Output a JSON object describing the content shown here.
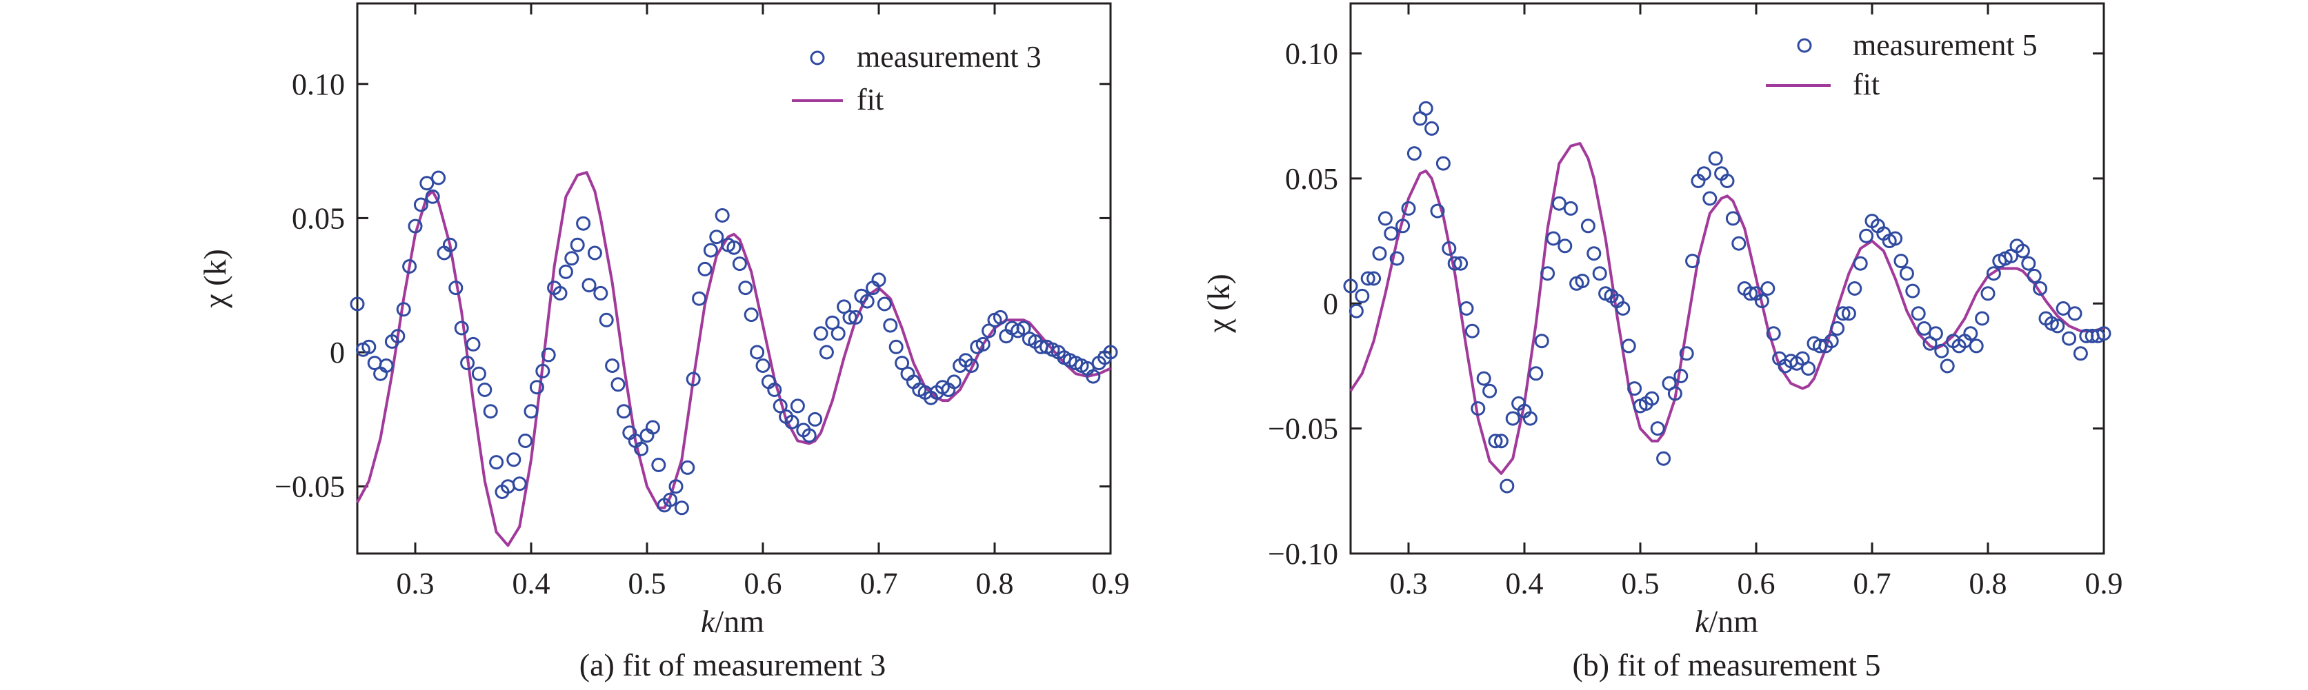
{
  "chart_data": [
    {
      "type": "scatter",
      "caption": "(a) fit of measurement 3",
      "xlabel_italic": "k",
      "xlabel_rest": "/nm",
      "ylabel": "χ (k)",
      "xlim": [
        0.25,
        0.9
      ],
      "ylim": [
        -0.075,
        0.13
      ],
      "xticks": [
        "0.3",
        "0.4",
        "0.5",
        "0.6",
        "0.7",
        "0.8",
        "0.9"
      ],
      "yticks": [
        {
          "v": 0.1,
          "label": "0.10"
        },
        {
          "v": 0.05,
          "label": "0.05"
        },
        {
          "v": 0,
          "label": "0"
        },
        {
          "v": -0.05,
          "label": "−0.05"
        }
      ],
      "legend_position": "top-right",
      "colors": {
        "points": "#2f4aa0",
        "fit": "#a23a9b"
      },
      "series": [
        {
          "name": "measurement 3",
          "kind": "points",
          "x": [
            0.25,
            0.255,
            0.26,
            0.265,
            0.27,
            0.275,
            0.28,
            0.285,
            0.29,
            0.295,
            0.3,
            0.305,
            0.31,
            0.315,
            0.32,
            0.325,
            0.33,
            0.335,
            0.34,
            0.345,
            0.35,
            0.355,
            0.36,
            0.365,
            0.37,
            0.375,
            0.38,
            0.385,
            0.39,
            0.395,
            0.4,
            0.405,
            0.41,
            0.415,
            0.42,
            0.425,
            0.43,
            0.435,
            0.44,
            0.445,
            0.45,
            0.455,
            0.46,
            0.465,
            0.47,
            0.475,
            0.48,
            0.485,
            0.49,
            0.495,
            0.5,
            0.505,
            0.51,
            0.515,
            0.52,
            0.525,
            0.53,
            0.535,
            0.54,
            0.545,
            0.55,
            0.555,
            0.56,
            0.565,
            0.57,
            0.575,
            0.58,
            0.585,
            0.59,
            0.595,
            0.6,
            0.605,
            0.61,
            0.615,
            0.62,
            0.625,
            0.63,
            0.635,
            0.64,
            0.645,
            0.65,
            0.655,
            0.66,
            0.665,
            0.67,
            0.675,
            0.68,
            0.685,
            0.69,
            0.695,
            0.7,
            0.705,
            0.71,
            0.715,
            0.72,
            0.725,
            0.73,
            0.735,
            0.74,
            0.745,
            0.75,
            0.755,
            0.76,
            0.765,
            0.77,
            0.775,
            0.78,
            0.785,
            0.79,
            0.795,
            0.8,
            0.805,
            0.81,
            0.815,
            0.82,
            0.825,
            0.83,
            0.835,
            0.84,
            0.845,
            0.85,
            0.855,
            0.86,
            0.865,
            0.87,
            0.875,
            0.88,
            0.885,
            0.89,
            0.895,
            0.9
          ],
          "y": [
            0.018,
            0.001,
            0.002,
            -0.004,
            -0.008,
            -0.005,
            0.004,
            0.006,
            0.016,
            0.032,
            0.047,
            0.055,
            0.063,
            0.058,
            0.065,
            0.037,
            0.04,
            0.024,
            0.009,
            -0.004,
            0.003,
            -0.008,
            -0.014,
            -0.022,
            -0.041,
            -0.052,
            -0.05,
            -0.04,
            -0.049,
            -0.033,
            -0.022,
            -0.013,
            -0.007,
            -0.001,
            0.024,
            0.022,
            0.03,
            0.035,
            0.04,
            0.048,
            0.025,
            0.037,
            0.022,
            0.012,
            -0.005,
            -0.012,
            -0.022,
            -0.03,
            -0.033,
            -0.036,
            -0.031,
            -0.028,
            -0.042,
            -0.057,
            -0.055,
            -0.05,
            -0.058,
            -0.043,
            -0.01,
            0.02,
            0.031,
            0.038,
            0.043,
            0.051,
            0.04,
            0.039,
            0.033,
            0.024,
            0.014,
            0.0,
            -0.005,
            -0.011,
            -0.014,
            -0.02,
            -0.024,
            -0.026,
            -0.02,
            -0.029,
            -0.031,
            -0.025,
            0.007,
            0.0,
            0.011,
            0.007,
            0.017,
            0.013,
            0.013,
            0.021,
            0.019,
            0.024,
            0.027,
            0.018,
            0.01,
            0.002,
            -0.004,
            -0.008,
            -0.011,
            -0.014,
            -0.015,
            -0.017,
            -0.015,
            -0.013,
            -0.014,
            -0.011,
            -0.005,
            -0.003,
            -0.005,
            0.002,
            0.003,
            0.008,
            0.012,
            0.013,
            0.006,
            0.009,
            0.008,
            0.009,
            0.005,
            0.004,
            0.002,
            0.002,
            0.001,
            0.0,
            -0.002,
            -0.003,
            -0.004,
            -0.005,
            -0.006,
            -0.009,
            -0.004,
            -0.002,
            0.0
          ]
        },
        {
          "name": "fit",
          "kind": "line",
          "x": [
            0.25,
            0.26,
            0.27,
            0.28,
            0.29,
            0.3,
            0.31,
            0.315,
            0.32,
            0.33,
            0.34,
            0.35,
            0.36,
            0.37,
            0.38,
            0.39,
            0.4,
            0.41,
            0.42,
            0.43,
            0.44,
            0.448,
            0.455,
            0.46,
            0.47,
            0.48,
            0.49,
            0.5,
            0.51,
            0.515,
            0.52,
            0.53,
            0.54,
            0.55,
            0.56,
            0.57,
            0.575,
            0.58,
            0.59,
            0.6,
            0.61,
            0.62,
            0.63,
            0.64,
            0.645,
            0.65,
            0.66,
            0.67,
            0.68,
            0.69,
            0.7,
            0.71,
            0.72,
            0.73,
            0.74,
            0.75,
            0.755,
            0.76,
            0.77,
            0.78,
            0.79,
            0.8,
            0.81,
            0.82,
            0.825,
            0.83,
            0.84,
            0.85,
            0.86,
            0.87,
            0.88,
            0.89,
            0.9
          ],
          "y": [
            -0.056,
            -0.048,
            -0.032,
            -0.008,
            0.02,
            0.044,
            0.058,
            0.06,
            0.056,
            0.04,
            0.015,
            -0.018,
            -0.048,
            -0.067,
            -0.072,
            -0.065,
            -0.04,
            -0.005,
            0.032,
            0.058,
            0.066,
            0.067,
            0.06,
            0.05,
            0.026,
            -0.005,
            -0.033,
            -0.05,
            -0.058,
            -0.058,
            -0.054,
            -0.04,
            -0.01,
            0.018,
            0.036,
            0.043,
            0.044,
            0.042,
            0.03,
            0.01,
            -0.01,
            -0.025,
            -0.033,
            -0.034,
            -0.033,
            -0.03,
            -0.018,
            -0.002,
            0.012,
            0.021,
            0.024,
            0.02,
            0.009,
            -0.004,
            -0.013,
            -0.017,
            -0.018,
            -0.018,
            -0.014,
            -0.006,
            0.003,
            0.009,
            0.012,
            0.012,
            0.012,
            0.011,
            0.006,
            0.001,
            -0.004,
            -0.008,
            -0.009,
            -0.008,
            -0.006
          ]
        }
      ]
    },
    {
      "type": "scatter",
      "caption": "(b) fit of measurement 5",
      "xlabel_italic": "k",
      "xlabel_rest": "/nm",
      "ylabel": "χ (k)",
      "xlim": [
        0.25,
        0.9
      ],
      "ylim": [
        -0.1,
        0.12
      ],
      "xticks": [
        "0.3",
        "0.4",
        "0.5",
        "0.6",
        "0.7",
        "0.8",
        "0.9"
      ],
      "yticks": [
        {
          "v": 0.1,
          "label": "0.10"
        },
        {
          "v": 0.05,
          "label": "0.05"
        },
        {
          "v": 0,
          "label": "0"
        },
        {
          "v": -0.05,
          "label": "−0.05"
        },
        {
          "v": -0.1,
          "label": "−0.10"
        }
      ],
      "legend_position": "top-right",
      "colors": {
        "points": "#2f4aa0",
        "fit": "#a23a9b"
      },
      "series": [
        {
          "name": "measurement 5",
          "kind": "points",
          "x": [
            0.25,
            0.255,
            0.26,
            0.265,
            0.27,
            0.275,
            0.28,
            0.285,
            0.29,
            0.295,
            0.3,
            0.305,
            0.31,
            0.315,
            0.32,
            0.325,
            0.33,
            0.335,
            0.34,
            0.345,
            0.35,
            0.355,
            0.36,
            0.365,
            0.37,
            0.375,
            0.38,
            0.385,
            0.39,
            0.395,
            0.4,
            0.405,
            0.41,
            0.415,
            0.42,
            0.425,
            0.43,
            0.435,
            0.44,
            0.445,
            0.45,
            0.455,
            0.46,
            0.465,
            0.47,
            0.475,
            0.48,
            0.485,
            0.49,
            0.495,
            0.5,
            0.505,
            0.51,
            0.515,
            0.52,
            0.525,
            0.53,
            0.535,
            0.54,
            0.545,
            0.55,
            0.555,
            0.56,
            0.565,
            0.57,
            0.575,
            0.58,
            0.585,
            0.59,
            0.595,
            0.6,
            0.605,
            0.61,
            0.615,
            0.62,
            0.625,
            0.63,
            0.635,
            0.64,
            0.645,
            0.65,
            0.655,
            0.66,
            0.665,
            0.67,
            0.675,
            0.68,
            0.685,
            0.69,
            0.695,
            0.7,
            0.705,
            0.71,
            0.715,
            0.72,
            0.725,
            0.73,
            0.735,
            0.74,
            0.745,
            0.75,
            0.755,
            0.76,
            0.765,
            0.77,
            0.775,
            0.78,
            0.785,
            0.79,
            0.795,
            0.8,
            0.805,
            0.81,
            0.815,
            0.82,
            0.825,
            0.83,
            0.835,
            0.84,
            0.845,
            0.85,
            0.855,
            0.86,
            0.865,
            0.87,
            0.875,
            0.88,
            0.885,
            0.89,
            0.895,
            0.9
          ],
          "y": [
            0.007,
            -0.003,
            0.003,
            0.01,
            0.01,
            0.02,
            0.034,
            0.028,
            0.018,
            0.031,
            0.038,
            0.06,
            0.074,
            0.078,
            0.07,
            0.037,
            0.056,
            0.022,
            0.016,
            0.016,
            -0.002,
            -0.011,
            -0.042,
            -0.03,
            -0.035,
            -0.055,
            -0.055,
            -0.073,
            -0.046,
            -0.04,
            -0.043,
            -0.046,
            -0.028,
            -0.015,
            0.012,
            0.026,
            0.04,
            0.023,
            0.038,
            0.008,
            0.009,
            0.031,
            0.02,
            0.012,
            0.004,
            0.003,
            0.001,
            -0.002,
            -0.017,
            -0.034,
            -0.041,
            -0.04,
            -0.038,
            -0.05,
            -0.062,
            -0.032,
            -0.036,
            -0.029,
            -0.02,
            0.017,
            0.049,
            0.052,
            0.042,
            0.058,
            0.052,
            0.049,
            0.034,
            0.024,
            0.006,
            0.004,
            0.004,
            0.001,
            0.006,
            -0.012,
            -0.022,
            -0.025,
            -0.023,
            -0.024,
            -0.022,
            -0.026,
            -0.016,
            -0.017,
            -0.017,
            -0.015,
            -0.01,
            -0.004,
            -0.004,
            0.006,
            0.016,
            0.027,
            0.033,
            0.031,
            0.028,
            0.025,
            0.026,
            0.017,
            0.012,
            0.005,
            -0.004,
            -0.01,
            -0.016,
            -0.012,
            -0.019,
            -0.025,
            -0.015,
            -0.017,
            -0.015,
            -0.012,
            -0.017,
            -0.006,
            0.004,
            0.012,
            0.017,
            0.018,
            0.019,
            0.023,
            0.021,
            0.016,
            0.011,
            0.006,
            -0.006,
            -0.008,
            -0.009,
            -0.002,
            -0.014,
            -0.004,
            -0.02,
            -0.013,
            -0.013,
            -0.013,
            -0.012
          ]
        },
        {
          "name": "fit",
          "kind": "line",
          "x": [
            0.25,
            0.26,
            0.27,
            0.28,
            0.29,
            0.3,
            0.31,
            0.315,
            0.32,
            0.33,
            0.34,
            0.35,
            0.36,
            0.37,
            0.38,
            0.39,
            0.4,
            0.41,
            0.42,
            0.43,
            0.44,
            0.448,
            0.455,
            0.46,
            0.47,
            0.48,
            0.49,
            0.5,
            0.51,
            0.515,
            0.52,
            0.53,
            0.54,
            0.55,
            0.56,
            0.57,
            0.575,
            0.58,
            0.59,
            0.6,
            0.61,
            0.62,
            0.63,
            0.64,
            0.645,
            0.65,
            0.66,
            0.67,
            0.68,
            0.69,
            0.7,
            0.71,
            0.72,
            0.73,
            0.74,
            0.75,
            0.755,
            0.76,
            0.77,
            0.78,
            0.79,
            0.8,
            0.81,
            0.82,
            0.825,
            0.83,
            0.84,
            0.85,
            0.86,
            0.87,
            0.88,
            0.89,
            0.9
          ],
          "y": [
            -0.035,
            -0.028,
            -0.015,
            0.004,
            0.025,
            0.042,
            0.052,
            0.053,
            0.05,
            0.035,
            0.012,
            -0.018,
            -0.046,
            -0.063,
            -0.068,
            -0.062,
            -0.04,
            -0.008,
            0.03,
            0.056,
            0.063,
            0.064,
            0.058,
            0.05,
            0.026,
            -0.005,
            -0.033,
            -0.05,
            -0.055,
            -0.055,
            -0.052,
            -0.038,
            -0.01,
            0.018,
            0.036,
            0.042,
            0.043,
            0.041,
            0.03,
            0.01,
            -0.01,
            -0.025,
            -0.032,
            -0.034,
            -0.033,
            -0.03,
            -0.018,
            -0.002,
            0.012,
            0.022,
            0.025,
            0.021,
            0.01,
            -0.003,
            -0.012,
            -0.017,
            -0.018,
            -0.017,
            -0.013,
            -0.006,
            0.004,
            0.011,
            0.014,
            0.014,
            0.014,
            0.013,
            0.008,
            0.001,
            -0.005,
            -0.009,
            -0.011,
            -0.011,
            -0.01
          ]
        }
      ]
    }
  ]
}
